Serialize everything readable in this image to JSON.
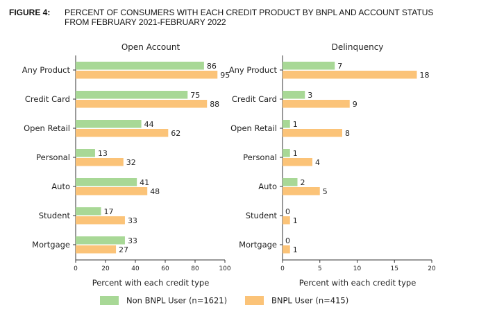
{
  "figure": {
    "label": "FIGURE 4:",
    "title_line1": "PERCENT OF CONSUMERS WITH EACH CREDIT PRODUCT BY BNPL AND ACCOUNT STATUS",
    "title_line2": "FROM FEBRUARY 2021-FEBRUARY 2022"
  },
  "colors": {
    "non_bnpl": "#a8d896",
    "bnpl": "#fbc378",
    "axis": "#333333",
    "text": "#222222"
  },
  "legend": {
    "non_bnpl": "Non BNPL User (n=1621)",
    "bnpl": "BNPL User (n=415)"
  },
  "chart_data": [
    {
      "type": "bar",
      "orientation": "horizontal",
      "title": "Open Account",
      "xlabel": "Percent with each credit type",
      "xlim": [
        0,
        100
      ],
      "xticks": [
        0,
        20,
        40,
        60,
        80,
        100
      ],
      "categories": [
        "Any Product",
        "Credit Card",
        "Open Retail",
        "Personal",
        "Auto",
        "Student",
        "Mortgage"
      ],
      "series": [
        {
          "name": "Non BNPL User (n=1621)",
          "values": [
            86,
            75,
            44,
            13,
            41,
            17,
            33
          ]
        },
        {
          "name": "BNPL User (n=415)",
          "values": [
            95,
            88,
            62,
            32,
            48,
            33,
            27
          ]
        }
      ],
      "legend": "bottom"
    },
    {
      "type": "bar",
      "orientation": "horizontal",
      "title": "Delinquency",
      "xlabel": "Percent with each credit type",
      "xlim": [
        0,
        20
      ],
      "xticks": [
        0,
        5,
        10,
        15,
        20
      ],
      "categories": [
        "Any Product",
        "Credit Card",
        "Open Retail",
        "Personal",
        "Auto",
        "Student",
        "Mortgage"
      ],
      "series": [
        {
          "name": "Non BNPL User (n=1621)",
          "values": [
            7,
            3,
            1,
            1,
            2,
            0,
            0
          ]
        },
        {
          "name": "BNPL User (n=415)",
          "values": [
            18,
            9,
            8,
            4,
            5,
            1,
            1
          ]
        }
      ],
      "legend": "bottom"
    }
  ]
}
